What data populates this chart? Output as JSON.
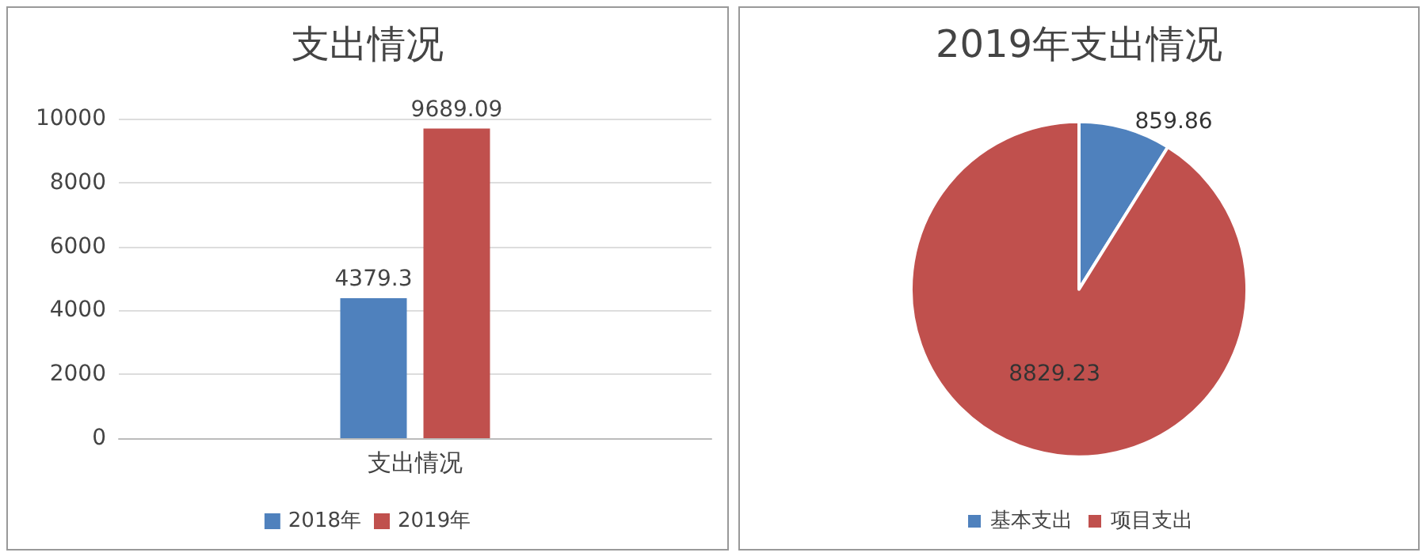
{
  "chart_data": [
    {
      "type": "bar",
      "title": "支出情况",
      "categories": [
        "支出情况"
      ],
      "series": [
        {
          "name": "2018年",
          "color": "#4f81bd",
          "values": [
            4379.3
          ]
        },
        {
          "name": "2019年",
          "color": "#c0504d",
          "values": [
            9689.09
          ]
        }
      ],
      "ylim": [
        0,
        10000
      ],
      "yticks": [
        0,
        2000,
        4000,
        6000,
        8000,
        10000
      ],
      "grid": "y",
      "legend": "bottom",
      "data_labels": true
    },
    {
      "type": "pie",
      "title": "2019年支出情况",
      "categories": [
        "基本支出",
        "项目支出"
      ],
      "values": [
        859.86,
        8829.23
      ],
      "colors": [
        "#4f81bd",
        "#c0504d"
      ],
      "legend": "bottom",
      "data_labels": true
    }
  ]
}
